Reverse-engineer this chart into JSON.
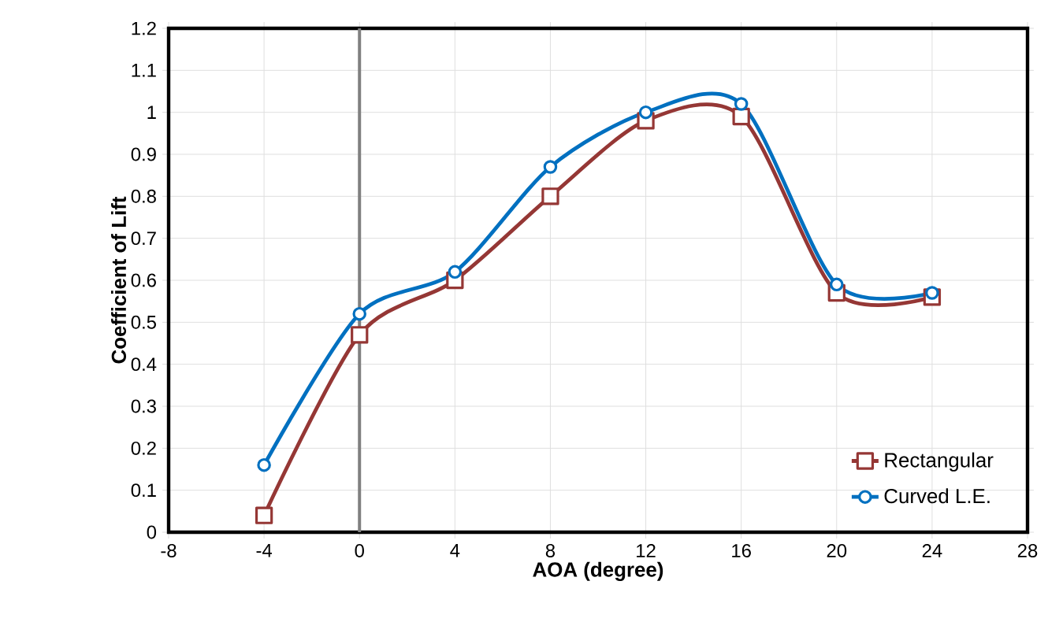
{
  "chart_data": {
    "type": "line",
    "xlabel": "AOA (degree)",
    "ylabel": "Coefficient of Lift",
    "x": [
      -4,
      0,
      4,
      8,
      12,
      16,
      20,
      24
    ],
    "series": [
      {
        "name": "Rectangular",
        "color": "#953735",
        "marker": "square",
        "values": [
          0.04,
          0.47,
          0.6,
          0.8,
          0.98,
          0.99,
          0.57,
          0.56
        ]
      },
      {
        "name": "Curved L.E.",
        "color": "#0070c0",
        "marker": "circle",
        "values": [
          0.16,
          0.52,
          0.62,
          0.87,
          1.0,
          1.02,
          0.59,
          0.57
        ]
      }
    ],
    "xlim": [
      -8,
      28
    ],
    "xticks": [
      -8,
      -4,
      0,
      4,
      8,
      12,
      16,
      20,
      24,
      28
    ],
    "ylim": [
      0,
      1.2
    ],
    "yticks": [
      0,
      0.1,
      0.2,
      0.3,
      0.4,
      0.5,
      0.6,
      0.7,
      0.8,
      0.9,
      1,
      1.1,
      1.2
    ],
    "ref_lines": [
      {
        "axis": "x",
        "value": 0,
        "color": "#808080"
      }
    ],
    "grid": true,
    "legend": "bottom right",
    "line_style": "solid"
  }
}
